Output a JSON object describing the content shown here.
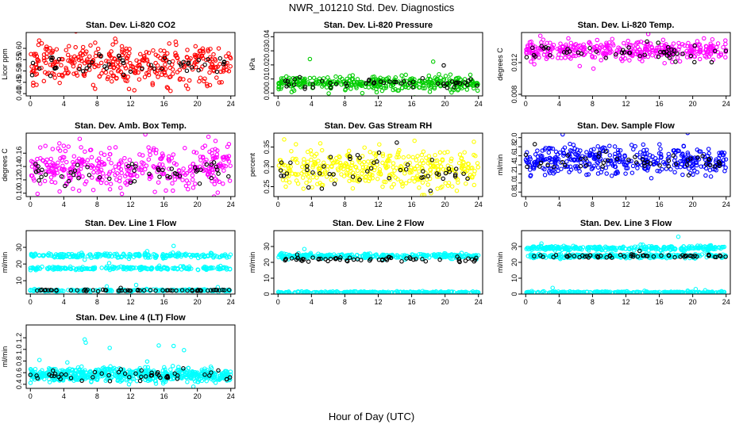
{
  "figure": {
    "title": "NWR_101210  Std. Dev. Diagnostics",
    "xlabel": "Hour of Day (UTC)"
  },
  "chart_data": [
    {
      "type": "scatter",
      "title": "Stan. Dev. Li-820 CO2",
      "ylabel": "Licor ppm",
      "color": "#ff0000",
      "xlim": [
        -0.5,
        24.5
      ],
      "ylim": [
        0.39,
        0.67
      ],
      "xticks": [
        "0",
        "4",
        "8",
        "12",
        "16",
        "20",
        "24"
      ],
      "yticks": [
        "0.40",
        "0.45",
        "0.50",
        "0.55",
        "0.60"
      ],
      "series": [
        {
          "name": "main",
          "x_range": [
            0,
            24
          ],
          "bands": [
            {
              "mean": 0.53,
              "sd": 0.045,
              "count": 380
            }
          ]
        },
        {
          "name": "black",
          "x_range": [
            0,
            24
          ],
          "bands": [
            {
              "mean": 0.52,
              "sd": 0.025,
              "count": 50
            }
          ]
        }
      ]
    },
    {
      "type": "scatter",
      "title": "Stan. Dev. Li-820 Pressure",
      "ylabel": "kPa",
      "color": "#00cc00",
      "xlim": [
        -0.5,
        24.5
      ],
      "ylim": [
        -0.002,
        0.043
      ],
      "xticks": [
        "0",
        "4",
        "8",
        "12",
        "16",
        "20",
        "24"
      ],
      "yticks": [
        "0.00",
        "0.01",
        "0.02",
        "0.03",
        "0.04"
      ],
      "series": [
        {
          "name": "main",
          "x_range": [
            0,
            24
          ],
          "bands": [
            {
              "mean": 0.007,
              "sd": 0.0025,
              "count": 360
            }
          ]
        },
        {
          "name": "black",
          "x_range": [
            0,
            24
          ],
          "bands": [
            {
              "mean": 0.007,
              "sd": 0.002,
              "count": 50
            }
          ]
        }
      ]
    },
    {
      "type": "scatter",
      "title": "Stan. Dev. Li-820 Temp.",
      "ylabel": "degrees C",
      "color": "#ff00ff",
      "xlim": [
        -0.5,
        24.5
      ],
      "ylim": [
        0.0078,
        0.0158
      ],
      "xticks": [
        "0",
        "4",
        "8",
        "12",
        "16",
        "20",
        "24"
      ],
      "yticks": [
        "0.008",
        "0.012"
      ],
      "series": [
        {
          "name": "main",
          "x_range": [
            0,
            24
          ],
          "bands": [
            {
              "mean": 0.0135,
              "sd": 0.0006,
              "count": 380
            }
          ]
        },
        {
          "name": "black",
          "x_range": [
            0,
            24
          ],
          "bands": [
            {
              "mean": 0.0133,
              "sd": 0.0005,
              "count": 50
            }
          ]
        }
      ]
    },
    {
      "type": "scatter",
      "title": "Stan. Dev. Amb. Box Temp.",
      "ylabel": "degrees C",
      "color": "#ff00ff",
      "xlim": [
        -0.5,
        24.5
      ],
      "ylim": [
        0.095,
        0.19
      ],
      "xticks": [
        "0",
        "4",
        "8",
        "12",
        "16",
        "20",
        "24"
      ],
      "yticks": [
        "0.10",
        "0.12",
        "0.14",
        "0.16"
      ],
      "series": [
        {
          "name": "main",
          "x_range": [
            0,
            24
          ],
          "bands": [
            {
              "mean": 0.138,
              "sd": 0.016,
              "count": 380
            }
          ]
        },
        {
          "name": "black",
          "x_range": [
            0,
            24
          ],
          "bands": [
            {
              "mean": 0.132,
              "sd": 0.008,
              "count": 50
            }
          ]
        }
      ]
    },
    {
      "type": "scatter",
      "title": "Stan. Dev. Gas Stream RH",
      "ylabel": "percent",
      "color": "#ffff00",
      "xlim": [
        -0.5,
        24.5
      ],
      "ylim": [
        0.225,
        0.385
      ],
      "xticks": [
        "0",
        "4",
        "8",
        "12",
        "16",
        "20",
        "24"
      ],
      "yticks": [
        "0.25",
        "0.30",
        "0.35"
      ],
      "series": [
        {
          "name": "main",
          "x_range": [
            0,
            24
          ],
          "bands": [
            {
              "mean": 0.295,
              "sd": 0.025,
              "count": 380
            }
          ]
        },
        {
          "name": "black",
          "x_range": [
            0,
            24
          ],
          "bands": [
            {
              "mean": 0.29,
              "sd": 0.02,
              "count": 50
            }
          ]
        }
      ]
    },
    {
      "type": "scatter",
      "title": "Stan. Dev. Sample Flow",
      "ylabel": "ml/min",
      "color": "#0000ff",
      "xlim": [
        -0.5,
        24.5
      ],
      "ylim": [
        0.7,
        2.1
      ],
      "xticks": [
        "0",
        "4",
        "8",
        "12",
        "16",
        "20",
        "24"
      ],
      "yticks": [
        "0.8",
        "1.0",
        "1.2",
        "1.4",
        "1.6",
        "1.8",
        "2.0"
      ],
      "series": [
        {
          "name": "main",
          "x_range": [
            0,
            24
          ],
          "bands": [
            {
              "mean": 1.5,
              "sd": 0.16,
              "count": 400
            }
          ]
        },
        {
          "name": "black",
          "x_range": [
            0,
            24
          ],
          "bands": [
            {
              "mean": 1.47,
              "sd": 0.09,
              "count": 50
            }
          ]
        }
      ]
    },
    {
      "type": "scatter",
      "title": "Stan. Dev. Line 1 Flow",
      "ylabel": "ml/min",
      "color": "#00ffff",
      "xlim": [
        -0.5,
        24.5
      ],
      "ylim": [
        2,
        40
      ],
      "xticks": [
        "0",
        "4",
        "8",
        "12",
        "16",
        "20",
        "24"
      ],
      "yticks": [
        "10",
        "20",
        "30"
      ],
      "series": [
        {
          "name": "main",
          "x_range": [
            0,
            24
          ],
          "bands": [
            {
              "mean": 25,
              "sd": 0.7,
              "count": 220
            },
            {
              "mean": 17.5,
              "sd": 0.5,
              "count": 220
            },
            {
              "mean": 4.2,
              "sd": 0.3,
              "count": 220
            }
          ]
        },
        {
          "name": "black",
          "x_range": [
            0,
            24
          ],
          "bands": [
            {
              "mean": 4.2,
              "sd": 0.2,
              "count": 60
            }
          ]
        }
      ]
    },
    {
      "type": "scatter",
      "title": "Stan. Dev. Line 2 Flow",
      "ylabel": "ml/min",
      "color": "#00ffff",
      "xlim": [
        -0.5,
        24.5
      ],
      "ylim": [
        0,
        40
      ],
      "xticks": [
        "0",
        "4",
        "8",
        "12",
        "16",
        "20",
        "24"
      ],
      "yticks": [
        "0",
        "10",
        "20",
        "30"
      ],
      "series": [
        {
          "name": "main",
          "x_range": [
            0,
            24
          ],
          "bands": [
            {
              "mean": 24,
              "sd": 0.8,
              "count": 300
            },
            {
              "mean": 1,
              "sd": 0.3,
              "count": 300
            }
          ]
        },
        {
          "name": "black",
          "x_range": [
            0,
            24
          ],
          "bands": [
            {
              "mean": 22,
              "sd": 0.8,
              "count": 60
            }
          ]
        }
      ]
    },
    {
      "type": "scatter",
      "title": "Stan. Dev. Line 3 Flow",
      "ylabel": "ml/min",
      "color": "#00ffff",
      "xlim": [
        -0.5,
        24.5
      ],
      "ylim": [
        0,
        40
      ],
      "xticks": [
        "0",
        "4",
        "8",
        "12",
        "16",
        "20",
        "24"
      ],
      "yticks": [
        "0",
        "10",
        "20",
        "30"
      ],
      "series": [
        {
          "name": "main",
          "x_range": [
            0,
            24
          ],
          "bands": [
            {
              "mean": 29,
              "sd": 0.7,
              "count": 280
            },
            {
              "mean": 24,
              "sd": 0.7,
              "count": 280
            },
            {
              "mean": 1,
              "sd": 0.3,
              "count": 280
            }
          ]
        },
        {
          "name": "black",
          "x_range": [
            0,
            24
          ],
          "bands": [
            {
              "mean": 24,
              "sd": 0.5,
              "count": 60
            }
          ]
        }
      ]
    },
    {
      "type": "scatter",
      "title": "Stan. Dev. Line 4 (LT) Flow",
      "ylabel": "ml/min",
      "color": "#00ffff",
      "xlim": [
        -0.5,
        24.5
      ],
      "ylim": [
        0.33,
        1.42
      ],
      "xticks": [
        "0",
        "4",
        "8",
        "12",
        "16",
        "20",
        "24"
      ],
      "yticks": [
        "0.4",
        "0.6",
        "0.8",
        "1.0",
        "1.2"
      ],
      "series": [
        {
          "name": "main",
          "x_range": [
            0,
            24
          ],
          "bands": [
            {
              "mean": 0.56,
              "sd": 0.06,
              "count": 600
            }
          ]
        },
        {
          "name": "black",
          "x_range": [
            0,
            24
          ],
          "bands": [
            {
              "mean": 0.56,
              "sd": 0.05,
              "count": 50
            }
          ]
        }
      ]
    }
  ]
}
